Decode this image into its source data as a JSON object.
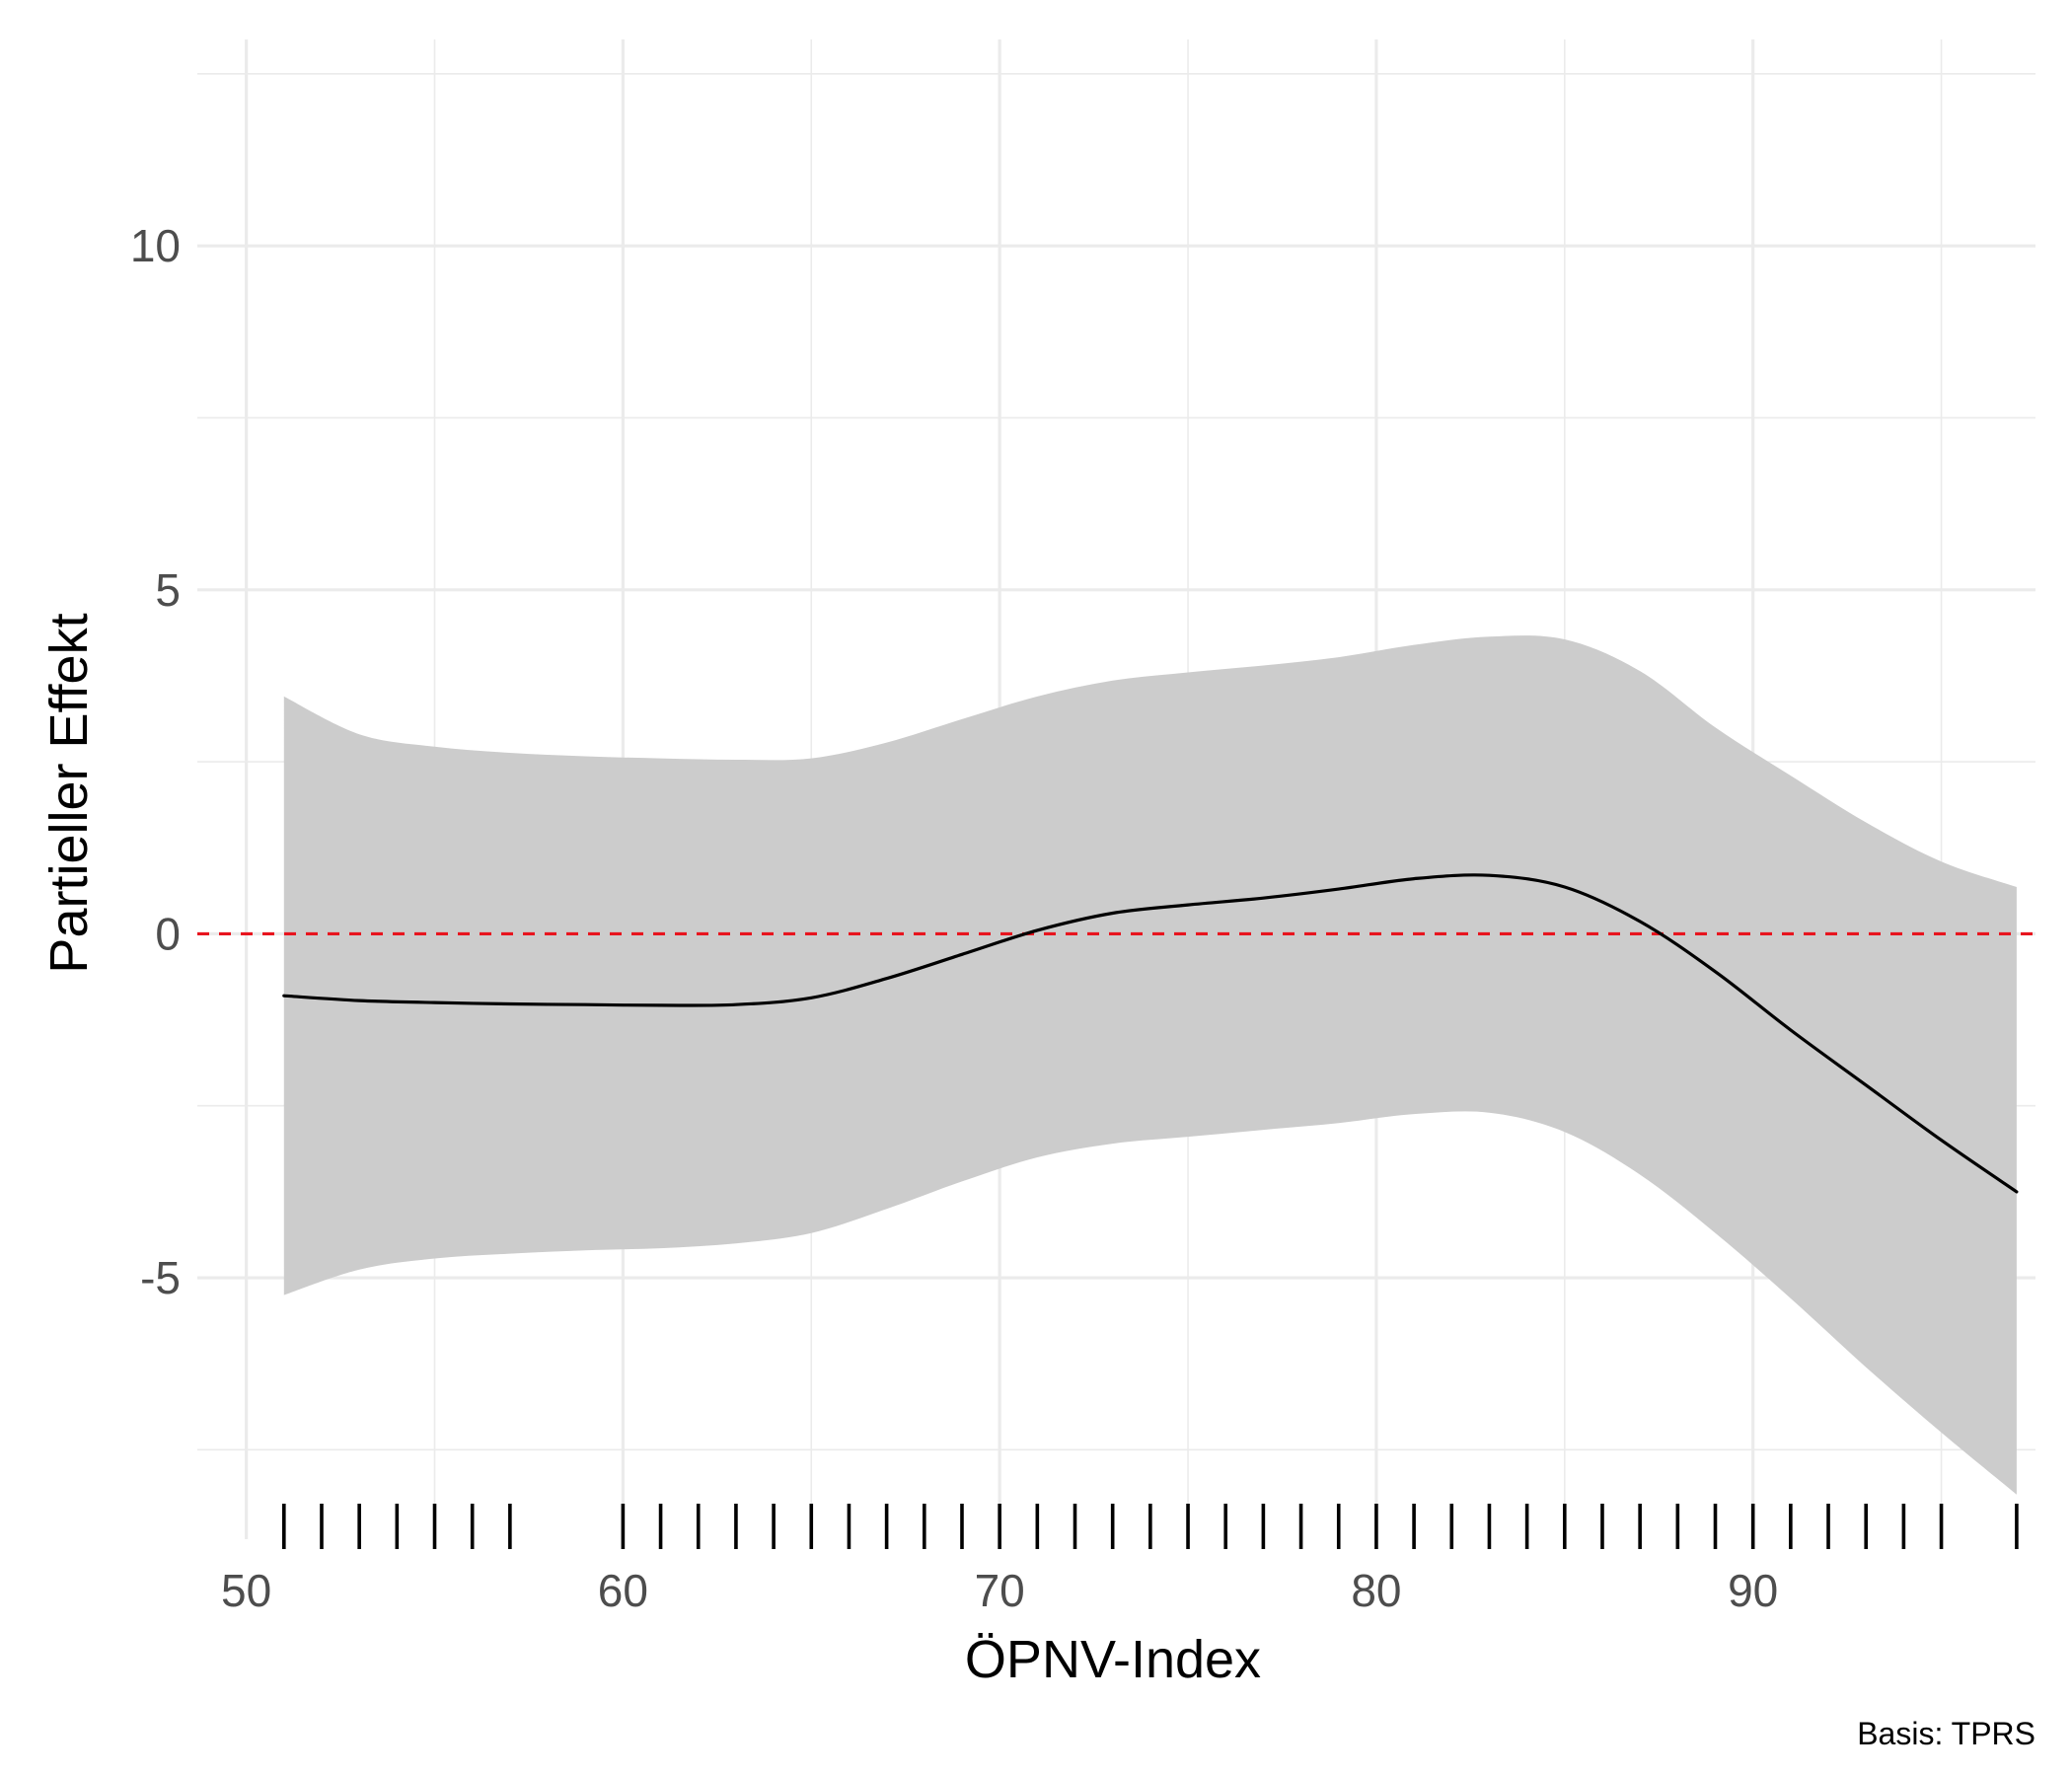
{
  "chart_data": {
    "type": "line",
    "title": "",
    "xlabel": "ÖPNV-Index",
    "ylabel": "Partieller Effekt",
    "caption": "Basis: TPRS",
    "xlim": [
      48.7,
      97.5
    ],
    "ylim": [
      -8.8,
      13.0
    ],
    "x_ticks": [
      50,
      60,
      70,
      80,
      90
    ],
    "x_tick_labels": [
      "50",
      "60",
      "70",
      "80",
      "90"
    ],
    "y_ticks": [
      -5,
      0,
      5,
      10
    ],
    "y_tick_labels": [
      "-5",
      "0",
      "5",
      "10"
    ],
    "grid": true,
    "reference_line": {
      "y": 0,
      "color": "#e8141e",
      "style": "dashed"
    },
    "series": [
      {
        "x": [
          51,
          53,
          55,
          57,
          59,
          61,
          63,
          65,
          67,
          69,
          71,
          73,
          75,
          77,
          79,
          81,
          83,
          85,
          87,
          89,
          91,
          93,
          95,
          97
        ],
        "y": [
          -0.9,
          -0.97,
          -1.0,
          -1.02,
          -1.03,
          -1.04,
          -1.03,
          -0.93,
          -0.65,
          -0.3,
          0.05,
          0.3,
          0.42,
          0.52,
          0.65,
          0.8,
          0.85,
          0.68,
          0.18,
          -0.55,
          -1.4,
          -2.2,
          -3.0,
          -3.75
        ],
        "lower": [
          -5.25,
          -4.88,
          -4.72,
          -4.65,
          -4.6,
          -4.57,
          -4.5,
          -4.35,
          -4.0,
          -3.6,
          -3.25,
          -3.05,
          -2.95,
          -2.85,
          -2.75,
          -2.62,
          -2.6,
          -2.88,
          -3.5,
          -4.35,
          -5.3,
          -6.3,
          -7.25,
          -8.15
        ],
        "upper": [
          3.45,
          2.9,
          2.72,
          2.63,
          2.58,
          2.55,
          2.53,
          2.55,
          2.78,
          3.12,
          3.45,
          3.68,
          3.8,
          3.9,
          4.02,
          4.2,
          4.32,
          4.28,
          3.82,
          3.0,
          2.3,
          1.62,
          1.05,
          0.68
        ],
        "color": "#000000",
        "band_color": "#cccccc"
      }
    ],
    "rug_x": [
      51,
      52,
      53,
      54,
      55,
      56,
      57,
      60,
      61,
      62,
      63,
      64,
      65,
      66,
      67,
      68,
      69,
      70,
      71,
      72,
      73,
      74,
      75,
      76,
      77,
      78,
      79,
      80,
      81,
      82,
      83,
      84,
      85,
      86,
      87,
      88,
      89,
      90,
      91,
      92,
      93,
      94,
      95,
      97
    ]
  }
}
